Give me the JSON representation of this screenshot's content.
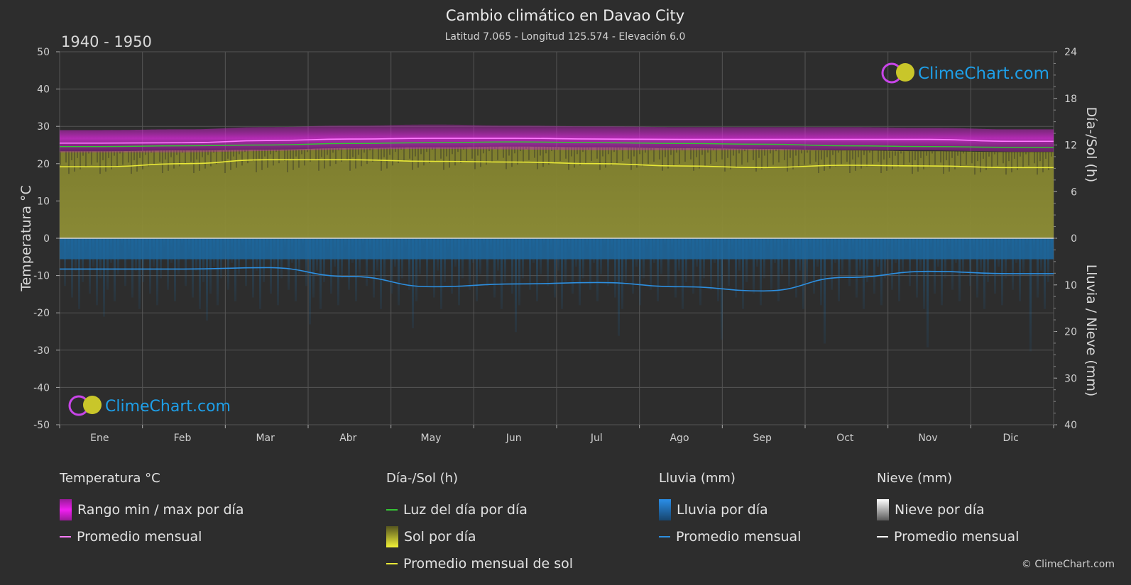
{
  "header": {
    "title": "Cambio climático en Davao City",
    "subtitle": "Latitud 7.065 - Longitud 125.574 - Elevación 6.0",
    "period": "1940 - 1950"
  },
  "logo_text": "ClimeChart.com",
  "copyright": "© ClimeChart.com",
  "colors": {
    "background": "#2d2d2d",
    "temp_range": "#d21fd2",
    "temp_avg": "#ff7cff",
    "daylight": "#35c435",
    "sunshine_fill": "#8c8c32",
    "sunshine_avg": "#e8e838",
    "rain_fill": "#1f6fa8",
    "rain_avg": "#2d8fe0",
    "snow_avg": "#ffffff",
    "logo": "#1e9fe8"
  },
  "chart_data": {
    "type": "line",
    "months": [
      "Ene",
      "Feb",
      "Mar",
      "Abr",
      "May",
      "Jun",
      "Jul",
      "Ago",
      "Sep",
      "Oct",
      "Nov",
      "Dic"
    ],
    "axes": {
      "left": {
        "label": "Temperatura °C",
        "range": [
          -50,
          50
        ],
        "ticks": [
          "50",
          "40",
          "30",
          "20",
          "10",
          "0",
          "-10",
          "-20",
          "-30",
          "-40",
          "-50"
        ]
      },
      "right_top": {
        "label": "Día-/Sol (h)",
        "range": [
          0,
          24
        ],
        "ticks": [
          "24",
          "18",
          "12",
          "6",
          "0"
        ]
      },
      "right_bottom": {
        "label": "Lluvia / Nieve (mm)",
        "range": [
          0,
          40
        ],
        "ticks": [
          "10",
          "20",
          "30",
          "40"
        ]
      }
    },
    "grid": true,
    "series": [
      {
        "name": "Promedio mensual",
        "group": "temperature",
        "unit": "°C",
        "values": [
          25.5,
          25.6,
          26.2,
          26.6,
          26.8,
          26.8,
          26.6,
          26.5,
          26.5,
          26.5,
          26.5,
          26.0
        ]
      },
      {
        "group": "temperature_min",
        "unit": "°C",
        "values": [
          23.0,
          23.0,
          23.4,
          23.8,
          24.0,
          23.8,
          23.6,
          23.6,
          23.6,
          23.6,
          23.6,
          23.2
        ]
      },
      {
        "group": "temperature_max",
        "unit": "°C",
        "values": [
          29.0,
          29.2,
          29.8,
          30.2,
          30.5,
          30.2,
          30.0,
          29.8,
          29.8,
          29.8,
          29.6,
          29.2
        ]
      },
      {
        "name": "Luz del día por día",
        "group": "daylight",
        "unit": "h",
        "values": [
          11.8,
          11.9,
          12.0,
          12.2,
          12.3,
          12.4,
          12.3,
          12.2,
          12.1,
          11.9,
          11.8,
          11.7
        ]
      },
      {
        "name": "Promedio mensual de sol",
        "group": "sunshine",
        "unit": "h",
        "values": [
          9.2,
          9.6,
          10.1,
          10.1,
          9.9,
          9.8,
          9.6,
          9.3,
          9.1,
          9.4,
          9.3,
          9.1
        ]
      },
      {
        "name": "Promedio mensual",
        "group": "rain",
        "unit": "mm",
        "values": [
          6.6,
          6.6,
          6.3,
          8.2,
          10.4,
          9.8,
          9.5,
          10.4,
          11.3,
          8.4,
          7.1,
          7.6
        ]
      }
    ]
  },
  "legend": {
    "temperature": {
      "title": "Temperatura °C",
      "items": [
        "Rango min / max por día",
        "Promedio mensual"
      ]
    },
    "sun": {
      "title": "Día-/Sol (h)",
      "items": [
        "Luz del día por día",
        "Sol por día",
        "Promedio mensual de sol"
      ]
    },
    "rain": {
      "title": "Lluvia (mm)",
      "items": [
        "Lluvia por día",
        "Promedio mensual"
      ]
    },
    "snow": {
      "title": "Nieve (mm)",
      "items": [
        "Nieve por día",
        "Promedio mensual"
      ]
    }
  }
}
